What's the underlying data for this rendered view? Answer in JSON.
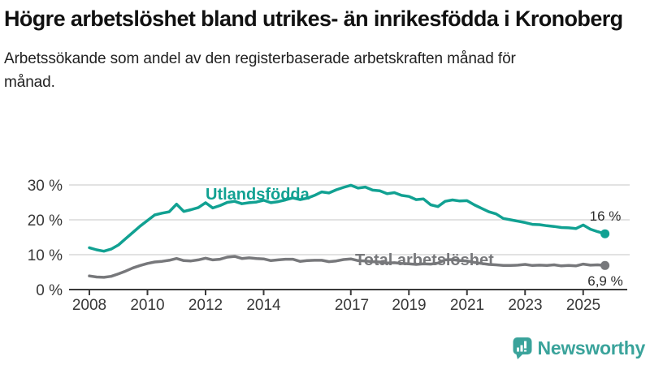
{
  "header": {
    "title": "Högre arbetslöshet bland utrikes- än inrikesfödda i Kronoberg",
    "subtitle": "Arbetssökande som andel av den registerbaserade arbetskraften månad för månad."
  },
  "colors": {
    "foreign_born_line": "#11a192",
    "total_line": "#77787b",
    "grid": "#d9d9d9",
    "axis": "#3b3b3b",
    "tick_text": "#383838",
    "value_text": "#2b2b2b",
    "brand_teal": "#3aa39b"
  },
  "chart_data": {
    "type": "line",
    "x_start": 2008,
    "x_step": 0.25,
    "xlim": [
      2007.3,
      2026.6
    ],
    "ylim": [
      0,
      30
    ],
    "grid": "horizontal",
    "legend": "inline-labels",
    "yticks": [
      {
        "value": 0,
        "label": "0 %"
      },
      {
        "value": 10,
        "label": "10 %"
      },
      {
        "value": 20,
        "label": "20 %"
      },
      {
        "value": 30,
        "label": "30 %"
      }
    ],
    "xticks": [
      {
        "value": 2008,
        "label": "2008"
      },
      {
        "value": 2010,
        "label": "2010"
      },
      {
        "value": 2012,
        "label": "2012"
      },
      {
        "value": 2014,
        "label": "2014"
      },
      {
        "value": 2017,
        "label": "2017"
      },
      {
        "value": 2019,
        "label": "2019"
      },
      {
        "value": 2021,
        "label": "2021"
      },
      {
        "value": 2023,
        "label": "2023"
      },
      {
        "value": 2025,
        "label": "2025"
      }
    ],
    "series": [
      {
        "name": "Utlandsfödda",
        "color": "#11a192",
        "end_label": "16 %",
        "end_value": 16.0,
        "values": [
          12.0,
          11.4,
          11.0,
          11.6,
          12.8,
          14.6,
          16.4,
          18.2,
          19.8,
          21.4,
          21.9,
          22.3,
          24.5,
          22.4,
          22.9,
          23.5,
          24.9,
          23.4,
          24.1,
          25.0,
          25.3,
          24.6,
          24.9,
          25.1,
          25.6,
          24.9,
          25.2,
          25.7,
          26.3,
          25.8,
          26.2,
          27.0,
          28.0,
          27.7,
          28.6,
          29.3,
          29.9,
          29.1,
          29.4,
          28.5,
          28.3,
          27.5,
          27.8,
          27.0,
          26.7,
          25.8,
          26.0,
          24.3,
          23.8,
          25.3,
          25.7,
          25.4,
          25.5,
          24.3,
          23.3,
          22.3,
          21.7,
          20.4,
          20.0,
          19.6,
          19.2,
          18.7,
          18.6,
          18.3,
          18.1,
          17.8,
          17.7,
          17.5,
          18.5,
          17.3,
          16.6,
          16.0
        ]
      },
      {
        "name": "Total arbetslöshet",
        "color": "#77787b",
        "end_label": "6,9 %",
        "end_value": 6.9,
        "values": [
          3.9,
          3.6,
          3.5,
          3.8,
          4.5,
          5.3,
          6.2,
          6.9,
          7.5,
          7.9,
          8.1,
          8.4,
          8.9,
          8.3,
          8.2,
          8.5,
          9.0,
          8.5,
          8.7,
          9.3,
          9.5,
          8.9,
          9.1,
          8.9,
          8.8,
          8.3,
          8.5,
          8.7,
          8.7,
          8.1,
          8.3,
          8.4,
          8.4,
          8.0,
          8.2,
          8.6,
          8.8,
          8.3,
          8.2,
          8.0,
          7.9,
          7.6,
          7.7,
          7.5,
          7.4,
          7.2,
          7.4,
          7.3,
          7.6,
          8.5,
          8.6,
          8.3,
          8.2,
          7.8,
          7.5,
          7.2,
          7.1,
          6.9,
          6.9,
          7.0,
          7.2,
          6.9,
          7.0,
          6.9,
          7.1,
          6.8,
          6.9,
          6.8,
          7.3,
          7.0,
          7.1,
          6.9
        ]
      }
    ]
  },
  "footer": {
    "brand": "Newsworthy",
    "logo_icon": "bar-chart-speech-bubble-icon"
  }
}
